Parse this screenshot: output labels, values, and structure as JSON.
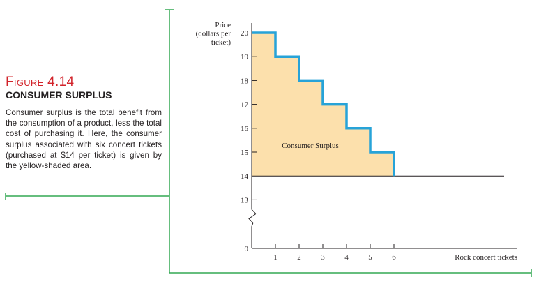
{
  "figure": {
    "label": "Figure 4.14",
    "title": "CONSUMER SURPLUS",
    "text": "Consumer surplus is the total benefit from the consumption of a product, less the total cost of purchasing it. Here, the consumer surplus associated with six concert tickets (purchased at $14 per ticket) is given by the yellow-shaded area."
  },
  "colors": {
    "accent": "#33a853",
    "label": "#d2232a",
    "fill": "#fce0ac",
    "step": "#27a3d8"
  },
  "chart_data": {
    "type": "area",
    "ylabel_lines": [
      "Price",
      "(dollars per",
      "ticket)"
    ],
    "xlabel": "Rock concert tickets",
    "x_ticks": [
      "1",
      "2",
      "3",
      "4",
      "5",
      "6"
    ],
    "y_ticks": [
      "20",
      "19",
      "18",
      "17",
      "16",
      "15",
      "14",
      "13",
      "0"
    ],
    "axis_break": true,
    "ylim": [
      13,
      20
    ],
    "xlim": [
      0,
      11
    ],
    "price_line": 14,
    "demand_steps": [
      {
        "x_start": 0,
        "x_end": 1,
        "price": 20
      },
      {
        "x_start": 1,
        "x_end": 2,
        "price": 19
      },
      {
        "x_start": 2,
        "x_end": 3,
        "price": 18
      },
      {
        "x_start": 3,
        "x_end": 4,
        "price": 17
      },
      {
        "x_start": 4,
        "x_end": 5,
        "price": 16
      },
      {
        "x_start": 5,
        "x_end": 6,
        "price": 15
      }
    ],
    "annotation": "Consumer Surplus"
  }
}
